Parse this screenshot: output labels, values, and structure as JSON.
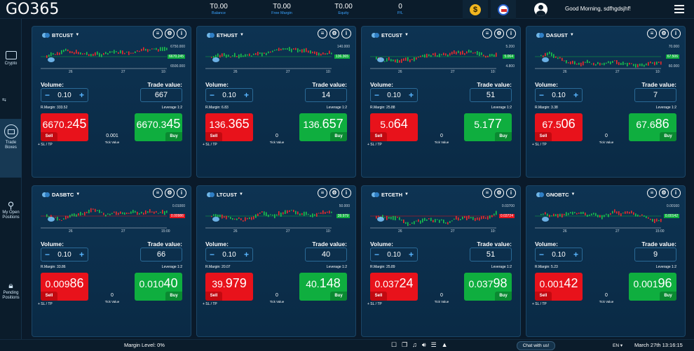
{
  "app": {
    "logo": "GO365"
  },
  "header": {
    "stats": [
      {
        "value": "T0.00",
        "label": "Balance"
      },
      {
        "value": "T0.00",
        "label": "Free Margin"
      },
      {
        "value": "T0.00",
        "label": "Equity"
      },
      {
        "value": "0",
        "label": "P/L"
      }
    ],
    "coin_symbol": "$",
    "greeting": "Good Morning, sdfhgdsjhf!"
  },
  "sidebar": {
    "items": [
      {
        "label": "Crypto",
        "icon": "chart-icon"
      },
      {
        "label": "Trade Boxes",
        "icon": "boxes-icon"
      },
      {
        "label": "My Open Positions",
        "icon": "magnifier-icon"
      },
      {
        "label": "Pending Positions",
        "icon": "lock-icon"
      }
    ]
  },
  "common": {
    "volume_label": "Volume:",
    "trade_value_label": "Trade value:",
    "volume": "0.10",
    "leverage": "Leverage 1:2",
    "sell_label": "Sell",
    "buy_label": "Buy",
    "tick_value_label": "Tick Value",
    "sl_tp": "+ SL / TP"
  },
  "cards": [
    {
      "symbol": "BTCUST",
      "trade_value": "667",
      "rmargin": "R.Margin: 333.52",
      "sell_main": "6670.2",
      "sell_big": "45",
      "buy_main": "6670.3",
      "buy_big": "45",
      "tick_value": "0.001",
      "x_ticks": [
        "26",
        "27",
        "10:"
      ],
      "y_ticks": [
        "6750.000",
        "6500.000"
      ],
      "price_tag": "6670.245",
      "tag_color": "#0fae3f"
    },
    {
      "symbol": "ETHUST",
      "trade_value": "14",
      "rmargin": "R.Margin: 6.83",
      "sell_main": "136.",
      "sell_big": "365",
      "buy_main": "136.",
      "buy_big": "657",
      "tick_value": "0",
      "x_ticks": [
        "26",
        "27",
        "10:"
      ],
      "y_ticks": [
        "140.000"
      ],
      "price_tag": "136.365",
      "tag_color": "#0fae3f"
    },
    {
      "symbol": "ETCUST",
      "trade_value": "51",
      "rmargin": "R.Margin: 25.88",
      "sell_main": "5.0",
      "sell_big": "64",
      "buy_main": "5.1",
      "buy_big": "77",
      "tick_value": "0",
      "x_ticks": [
        "26",
        "27",
        "10:"
      ],
      "y_ticks": [
        "5.200",
        "4.800"
      ],
      "price_tag": "5.064",
      "tag_color": "#0fae3f"
    },
    {
      "symbol": "DASUST",
      "trade_value": "7",
      "rmargin": "R.Margin: 3.38",
      "sell_main": "67.5",
      "sell_big": "06",
      "buy_main": "67.6",
      "buy_big": "86",
      "tick_value": "0",
      "x_ticks": [
        "26",
        "27",
        "10:"
      ],
      "y_ticks": [
        "70.000",
        "60.000"
      ],
      "price_tag": "67.506",
      "tag_color": "#0fae3f"
    },
    {
      "symbol": "DASBTC",
      "trade_value": "66",
      "rmargin": "R.Margin: 33.86",
      "sell_main": "0.009",
      "sell_big": "86",
      "buy_main": "0.010",
      "buy_big": "40",
      "tick_value": "0",
      "x_ticks": [
        "26",
        "27",
        "15:00"
      ],
      "y_ticks": [
        "0.01000"
      ],
      "price_tag": "0.00986",
      "tag_color": "#e8121b"
    },
    {
      "symbol": "LTCUST",
      "trade_value": "40",
      "rmargin": "R.Margin: 20.07",
      "sell_main": "39.",
      "sell_big": "979",
      "buy_main": "40.",
      "buy_big": "148",
      "tick_value": "0",
      "x_ticks": [
        "26",
        "27",
        "10:"
      ],
      "y_ticks": [
        "50.000"
      ],
      "price_tag": "39.979",
      "tag_color": "#0fae3f"
    },
    {
      "symbol": "ETCETH",
      "trade_value": "51",
      "rmargin": "R.Margin: 25.89",
      "sell_main": "0.037",
      "sell_big": "24",
      "buy_main": "0.037",
      "buy_big": "98",
      "tick_value": "0",
      "x_ticks": [
        "26",
        "27",
        "10:"
      ],
      "y_ticks": [
        "0.03700"
      ],
      "price_tag": "0.03724",
      "tag_color": "#e8121b"
    },
    {
      "symbol": "GNOBTC",
      "trade_value": "9",
      "rmargin": "R.Margin: 5.23",
      "sell_main": "0.001",
      "sell_big": "42",
      "buy_main": "0.001",
      "buy_big": "96",
      "tick_value": "0",
      "x_ticks": [
        "26",
        "27",
        "15:00"
      ],
      "y_ticks": [
        "0.00160"
      ],
      "price_tag": "0.00142",
      "tag_color": "#0fae3f"
    }
  ],
  "footer": {
    "margin_level": "Margin Level: 0%",
    "chat": "Chat with us!",
    "language": "EN ▾",
    "datetime": "March 27th 13:16:15"
  }
}
